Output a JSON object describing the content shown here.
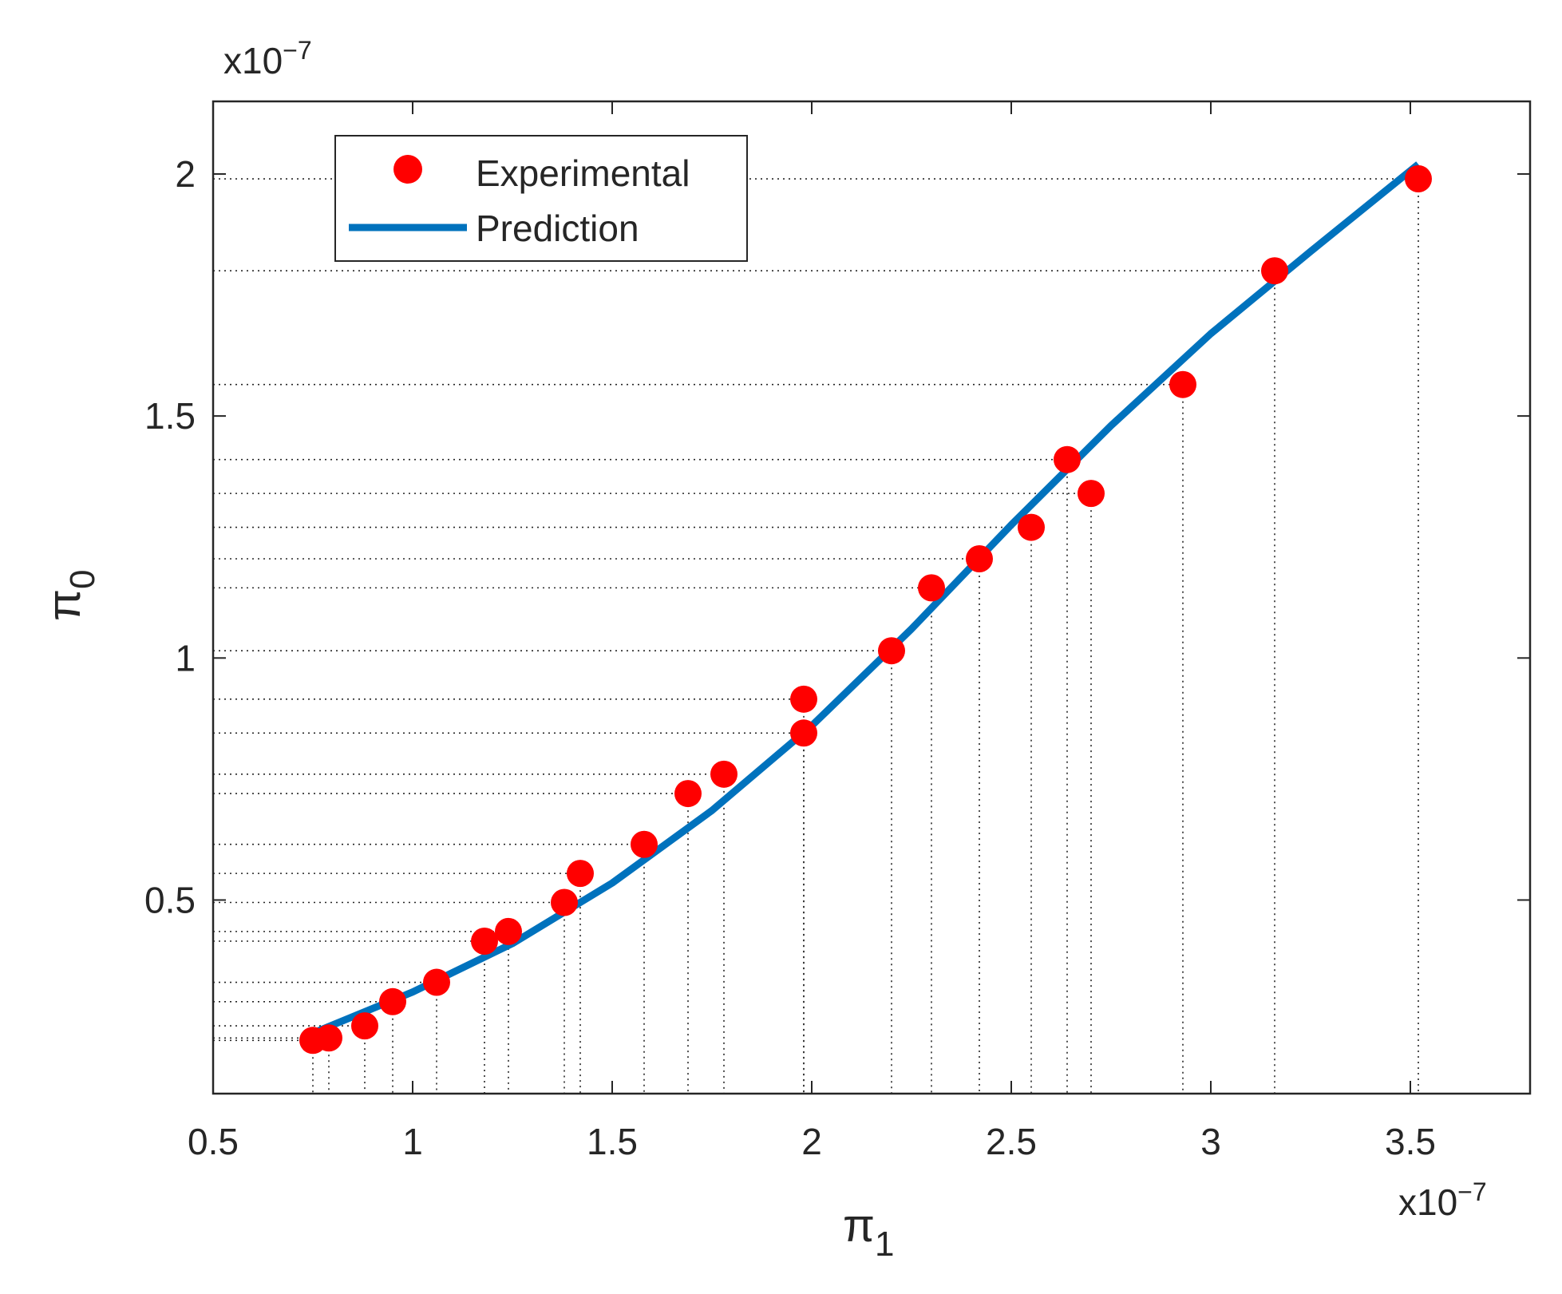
{
  "chart_data": {
    "type": "scatter",
    "xlabel": "π",
    "xlabel_sub": "1",
    "ylabel": "π",
    "ylabel_sub": "0",
    "x_exponent": "x10",
    "x_exponent_power": "−7",
    "y_exponent": "x10",
    "y_exponent_power": "−7",
    "xlim": [
      0.5,
      3.8
    ],
    "ylim": [
      0.1,
      2.15
    ],
    "xticks": [
      0.5,
      1,
      1.5,
      2,
      2.5,
      3,
      3.5
    ],
    "xtick_labels": [
      "0.5",
      "1",
      "1.5",
      "2",
      "2.5",
      "3",
      "3.5"
    ],
    "yticks": [
      0.5,
      1,
      1.5,
      2
    ],
    "ytick_labels": [
      "0.5",
      "1",
      "1.5",
      "2"
    ],
    "legend_position": "top-left",
    "series": [
      {
        "name": "Experimental",
        "kind": "scatter",
        "color": "#ff0000",
        "points": [
          [
            0.75,
            0.21
          ],
          [
            0.79,
            0.215
          ],
          [
            0.88,
            0.24
          ],
          [
            0.95,
            0.29
          ],
          [
            1.06,
            0.33
          ],
          [
            1.18,
            0.415
          ],
          [
            1.24,
            0.435
          ],
          [
            1.38,
            0.495
          ],
          [
            1.42,
            0.555
          ],
          [
            1.58,
            0.615
          ],
          [
            1.69,
            0.72
          ],
          [
            1.78,
            0.76
          ],
          [
            1.98,
            0.915
          ],
          [
            1.98,
            0.845
          ],
          [
            2.2,
            1.015
          ],
          [
            2.3,
            1.145
          ],
          [
            2.42,
            1.205
          ],
          [
            2.55,
            1.27
          ],
          [
            2.64,
            1.41
          ],
          [
            2.7,
            1.34
          ],
          [
            2.93,
            1.565
          ],
          [
            3.16,
            1.8
          ],
          [
            3.52,
            1.99
          ]
        ]
      },
      {
        "name": "Prediction",
        "kind": "line",
        "color": "#0072bd",
        "points": [
          [
            0.75,
            0.225
          ],
          [
            1.0,
            0.31
          ],
          [
            1.25,
            0.41
          ],
          [
            1.5,
            0.535
          ],
          [
            1.75,
            0.685
          ],
          [
            2.0,
            0.86
          ],
          [
            2.25,
            1.06
          ],
          [
            2.5,
            1.275
          ],
          [
            2.75,
            1.48
          ],
          [
            3.0,
            1.67
          ],
          [
            3.25,
            1.84
          ],
          [
            3.52,
            2.02
          ]
        ]
      }
    ]
  }
}
